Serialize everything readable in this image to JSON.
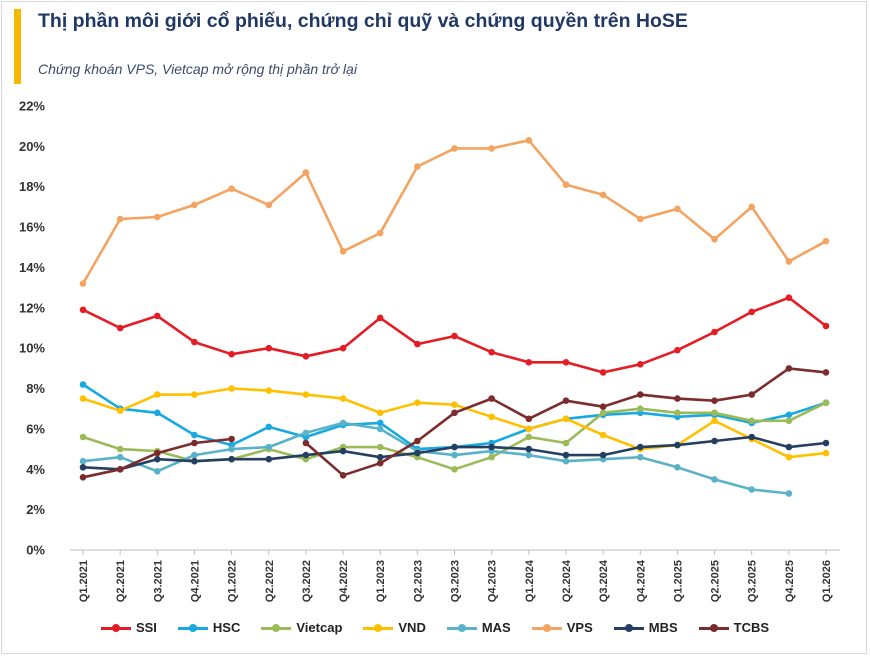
{
  "header": {
    "title": "Thị phần môi giới cổ phiếu, chứng chỉ quỹ và chứng quyền trên HoSE",
    "subtitle": "Chứng khoán VPS, Vietcap mở rộng thị phần trở lại",
    "accent_color": "#f5b800"
  },
  "chart_data": {
    "type": "line",
    "title": "Thị phần môi giới cổ phiếu, chứng chỉ quỹ và chứng quyền trên HoSE",
    "xlabel": "",
    "ylabel": "",
    "ylim": [
      0,
      22
    ],
    "y_tick_values": [
      0,
      2,
      4,
      6,
      8,
      10,
      12,
      14,
      16,
      18,
      20,
      22
    ],
    "y_tick_labels": [
      "0%",
      "2%",
      "4%",
      "6%",
      "8%",
      "10%",
      "12%",
      "14%",
      "16%",
      "18%",
      "20%",
      "22%"
    ],
    "grid": false,
    "legend_position": "bottom",
    "categories": [
      "Q1.2021",
      "Q2.2021",
      "Q3.2021",
      "Q4.2021",
      "Q1.2022",
      "Q2.2022",
      "Q3.2022",
      "Q4.2022",
      "Q1.2023",
      "Q2.2023",
      "Q3.2023",
      "Q4.2023",
      "Q1.2024",
      "Q2.2024",
      "Q3.2024",
      "Q4.2024",
      "Q1.2025",
      "Q2.2025",
      "Q3.2025",
      "Q4.2025",
      "Q1.2026"
    ],
    "series": [
      {
        "name": "SSI",
        "color": "#e41c23",
        "values": [
          11.9,
          11.0,
          11.6,
          10.3,
          9.7,
          10.0,
          9.6,
          10.0,
          11.5,
          10.2,
          10.6,
          9.8,
          9.3,
          9.3,
          8.8,
          9.2,
          9.9,
          10.8,
          11.8,
          12.5,
          11.1
        ]
      },
      {
        "name": "HSC",
        "color": "#17a9e0",
        "values": [
          8.2,
          7.0,
          6.8,
          5.7,
          5.2,
          6.1,
          5.6,
          6.2,
          6.3,
          5.0,
          5.1,
          5.3,
          6.0,
          6.5,
          6.7,
          6.8,
          6.6,
          6.7,
          6.3,
          6.7,
          7.3
        ]
      },
      {
        "name": "Vietcap",
        "color": "#9bbb59",
        "values": [
          5.6,
          5.0,
          4.9,
          4.4,
          4.5,
          5.0,
          4.5,
          5.1,
          5.1,
          4.6,
          4.0,
          4.6,
          5.6,
          5.3,
          6.8,
          7.0,
          6.8,
          6.8,
          6.4,
          6.4,
          7.3
        ]
      },
      {
        "name": "VND",
        "color": "#ffc000",
        "values": [
          7.5,
          6.9,
          7.7,
          7.7,
          8.0,
          7.9,
          7.7,
          7.5,
          6.8,
          7.3,
          7.2,
          6.6,
          6.0,
          6.5,
          5.7,
          5.0,
          5.2,
          6.4,
          5.5,
          4.6,
          4.8
        ]
      },
      {
        "name": "MAS",
        "color": "#5ab2c9",
        "values": [
          4.4,
          4.6,
          3.9,
          4.7,
          5.0,
          5.1,
          5.8,
          6.3,
          6.0,
          4.9,
          4.7,
          4.9,
          4.7,
          4.4,
          4.5,
          4.6,
          4.1,
          3.5,
          3.0,
          2.8,
          null
        ]
      },
      {
        "name": "VPS",
        "color": "#f4a460",
        "values": [
          13.2,
          16.4,
          16.5,
          17.1,
          17.9,
          17.1,
          18.7,
          14.8,
          15.7,
          19.0,
          19.9,
          19.9,
          20.3,
          18.1,
          17.6,
          16.4,
          16.9,
          15.4,
          17.0,
          14.3,
          15.3
        ]
      },
      {
        "name": "MBS",
        "color": "#243f60",
        "values": [
          4.1,
          4.0,
          4.5,
          4.4,
          4.5,
          4.5,
          4.7,
          4.9,
          4.6,
          4.8,
          5.1,
          5.1,
          5.0,
          4.7,
          4.7,
          5.1,
          5.2,
          5.4,
          5.6,
          5.1,
          5.3
        ]
      },
      {
        "name": "TCBS",
        "color": "#7b2c2c",
        "values": [
          3.6,
          4.0,
          4.8,
          5.3,
          5.5,
          null,
          5.3,
          3.7,
          4.3,
          5.4,
          6.8,
          7.5,
          6.5,
          7.4,
          7.1,
          7.7,
          7.5,
          7.4,
          7.7,
          9.0,
          8.8
        ]
      }
    ]
  }
}
